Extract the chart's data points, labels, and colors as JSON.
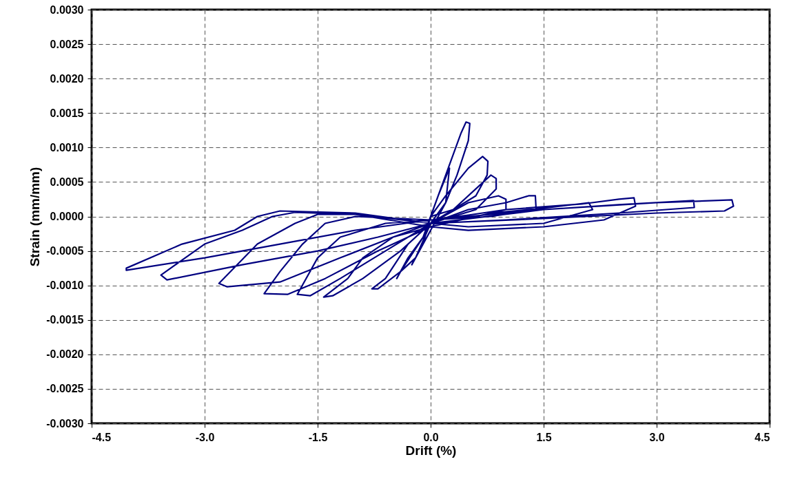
{
  "chart_data": {
    "type": "line",
    "xlabel": "Drift (%)",
    "ylabel": "Strain (mm/mm)",
    "xlim": [
      -4.5,
      4.5
    ],
    "ylim": [
      -0.003,
      0.003
    ],
    "xticks": [
      {
        "value": -4.5,
        "label": "-4.5"
      },
      {
        "value": -3,
        "label": "-3.0"
      },
      {
        "value": -1.5,
        "label": "-1.5"
      },
      {
        "value": 0,
        "label": "0.0"
      },
      {
        "value": 1.5,
        "label": "1.5"
      },
      {
        "value": 3,
        "label": "3.0"
      },
      {
        "value": 4.5,
        "label": "4.5"
      }
    ],
    "yticks": [
      {
        "value": -0.003,
        "label": "-0.0030"
      },
      {
        "value": -0.0025,
        "label": "-0.0025"
      },
      {
        "value": -0.002,
        "label": "-0.0020"
      },
      {
        "value": -0.0015,
        "label": "-0.0015"
      },
      {
        "value": -0.001,
        "label": "-0.0010"
      },
      {
        "value": -0.0005,
        "label": "-0.0005"
      },
      {
        "value": 0,
        "label": "0.0000"
      },
      {
        "value": 0.0005,
        "label": "0.0005"
      },
      {
        "value": 0.001,
        "label": "0.0010"
      },
      {
        "value": 0.0015,
        "label": "0.0015"
      },
      {
        "value": 0.002,
        "label": "0.0020"
      },
      {
        "value": 0.0025,
        "label": "0.0025"
      },
      {
        "value": 0.003,
        "label": "0.0030"
      }
    ],
    "grid": true,
    "line_style": "solid",
    "series": [
      {
        "color": "#000080",
        "x": [
          0,
          0.1,
          0.25,
          0.2,
          0,
          -0.2,
          -0.25,
          -0.1,
          0,
          0.2,
          0.4,
          0.47,
          0.52,
          0.5,
          0.35,
          0.2,
          0,
          -0.2,
          -0.4,
          -0.45,
          -0.3,
          -0.1,
          0,
          0.2,
          0.5,
          0.69,
          0.76,
          0.75,
          0.6,
          0.3,
          0,
          -0.3,
          -0.6,
          -0.78,
          -0.7,
          -0.4,
          -0.1,
          0,
          0.3,
          0.6,
          0.8,
          0.87,
          0.87,
          0.6,
          0,
          -0.5,
          -0.9,
          -1.1,
          -1.42,
          -1.3,
          -0.9,
          -0.4,
          0,
          0.5,
          0.9,
          1.0,
          1.0,
          0.5,
          0,
          -0.6,
          -1.2,
          -1.5,
          -1.77,
          -1.6,
          -1.2,
          -0.6,
          0,
          0.5,
          1.0,
          1.3,
          1.39,
          1.4,
          0.8,
          0,
          -1.0,
          -1.4,
          -1.7,
          -2.0,
          -2.21,
          -1.9,
          -1.4,
          -0.7,
          0,
          0.8,
          1.5,
          2.1,
          2.15,
          1.5,
          0.5,
          0,
          -1.0,
          -1.5,
          -1.8,
          -2.3,
          -2.81,
          -2.7,
          -2.0,
          -1.2,
          -0.5,
          0,
          1.0,
          2.0,
          2.5,
          2.7,
          2.72,
          2.3,
          1.5,
          0.5,
          0,
          -1.0,
          -1.8,
          -2.1,
          -2.5,
          -3.0,
          -3.58,
          -3.5,
          -2.5,
          -1.5,
          -0.7,
          0,
          1.5,
          2.5,
          3.49,
          3.5,
          2.5,
          1.0,
          0,
          -1.0,
          -2.0,
          -2.3,
          -2.6,
          -3.3,
          -4.04,
          -4.04,
          -3.0,
          -2.0,
          -1.0,
          0,
          1.5,
          3.0,
          4.0,
          4.02,
          3.9,
          3.0,
          1.5,
          0
        ],
        "values": [
          0,
          0.0003,
          0.0007,
          0.0002,
          -0.0001,
          -0.0006,
          -0.0007,
          -0.0004,
          0,
          0.0006,
          0.0012,
          0.00137,
          0.00135,
          0.0011,
          0.0006,
          0.0002,
          -0.0002,
          -0.0006,
          -0.0008,
          -0.0009,
          -0.0006,
          -0.0003,
          0,
          0.0003,
          0.0007,
          0.00087,
          0.0008,
          0.0006,
          0.0003,
          0.0001,
          -0.0001,
          -0.0004,
          -0.0009,
          -0.00105,
          -0.00105,
          -0.0008,
          -0.0003,
          0,
          0.0001,
          0.0004,
          0.0006,
          0.00055,
          0.0004,
          0.0001,
          -0.0001,
          -0.0003,
          -0.0006,
          -0.0009,
          -0.00117,
          -0.00115,
          -0.0009,
          -0.0005,
          -0.0001,
          0.0002,
          0.0003,
          0.00025,
          0.0001,
          2e-05,
          -5e-05,
          -0.0001,
          -0.0003,
          -0.0006,
          -0.00113,
          -0.00115,
          -0.0009,
          -0.0005,
          -0.0001,
          0.0001,
          0.0002,
          0.0003,
          0.0003,
          0.0001,
          0,
          -5e-05,
          0,
          -0.0001,
          -0.0004,
          -0.0008,
          -0.00112,
          -0.00113,
          -0.0009,
          -0.0005,
          -0.00015,
          5e-05,
          0.00012,
          0.0002,
          0.0001,
          -0.0001,
          -0.00015,
          -0.0001,
          3e-05,
          3e-05,
          -0.0001,
          -0.0004,
          -0.00097,
          -0.00102,
          -0.00095,
          -0.0006,
          -0.0003,
          -0.00015,
          0.0001,
          0.00018,
          0.00025,
          0.00027,
          0.00015,
          -5e-05,
          -0.00015,
          -0.0002,
          -0.00015,
          3e-05,
          6e-05,
          0,
          -0.0002,
          -0.0004,
          -0.00085,
          -0.00092,
          -0.0007,
          -0.0005,
          -0.0003,
          -0.0001,
          0.0001,
          0.00017,
          0.00023,
          0.00013,
          5e-05,
          -5e-05,
          -0.0001,
          5e-05,
          8e-05,
          0,
          -0.0002,
          -0.0004,
          -0.00075,
          -0.00078,
          -0.0006,
          -0.0004,
          -0.0002,
          -5e-05,
          0.0001,
          0.0002,
          0.00024,
          0.00015,
          8e-05,
          5e-05,
          -3e-05,
          -0.0001
        ]
      }
    ]
  }
}
